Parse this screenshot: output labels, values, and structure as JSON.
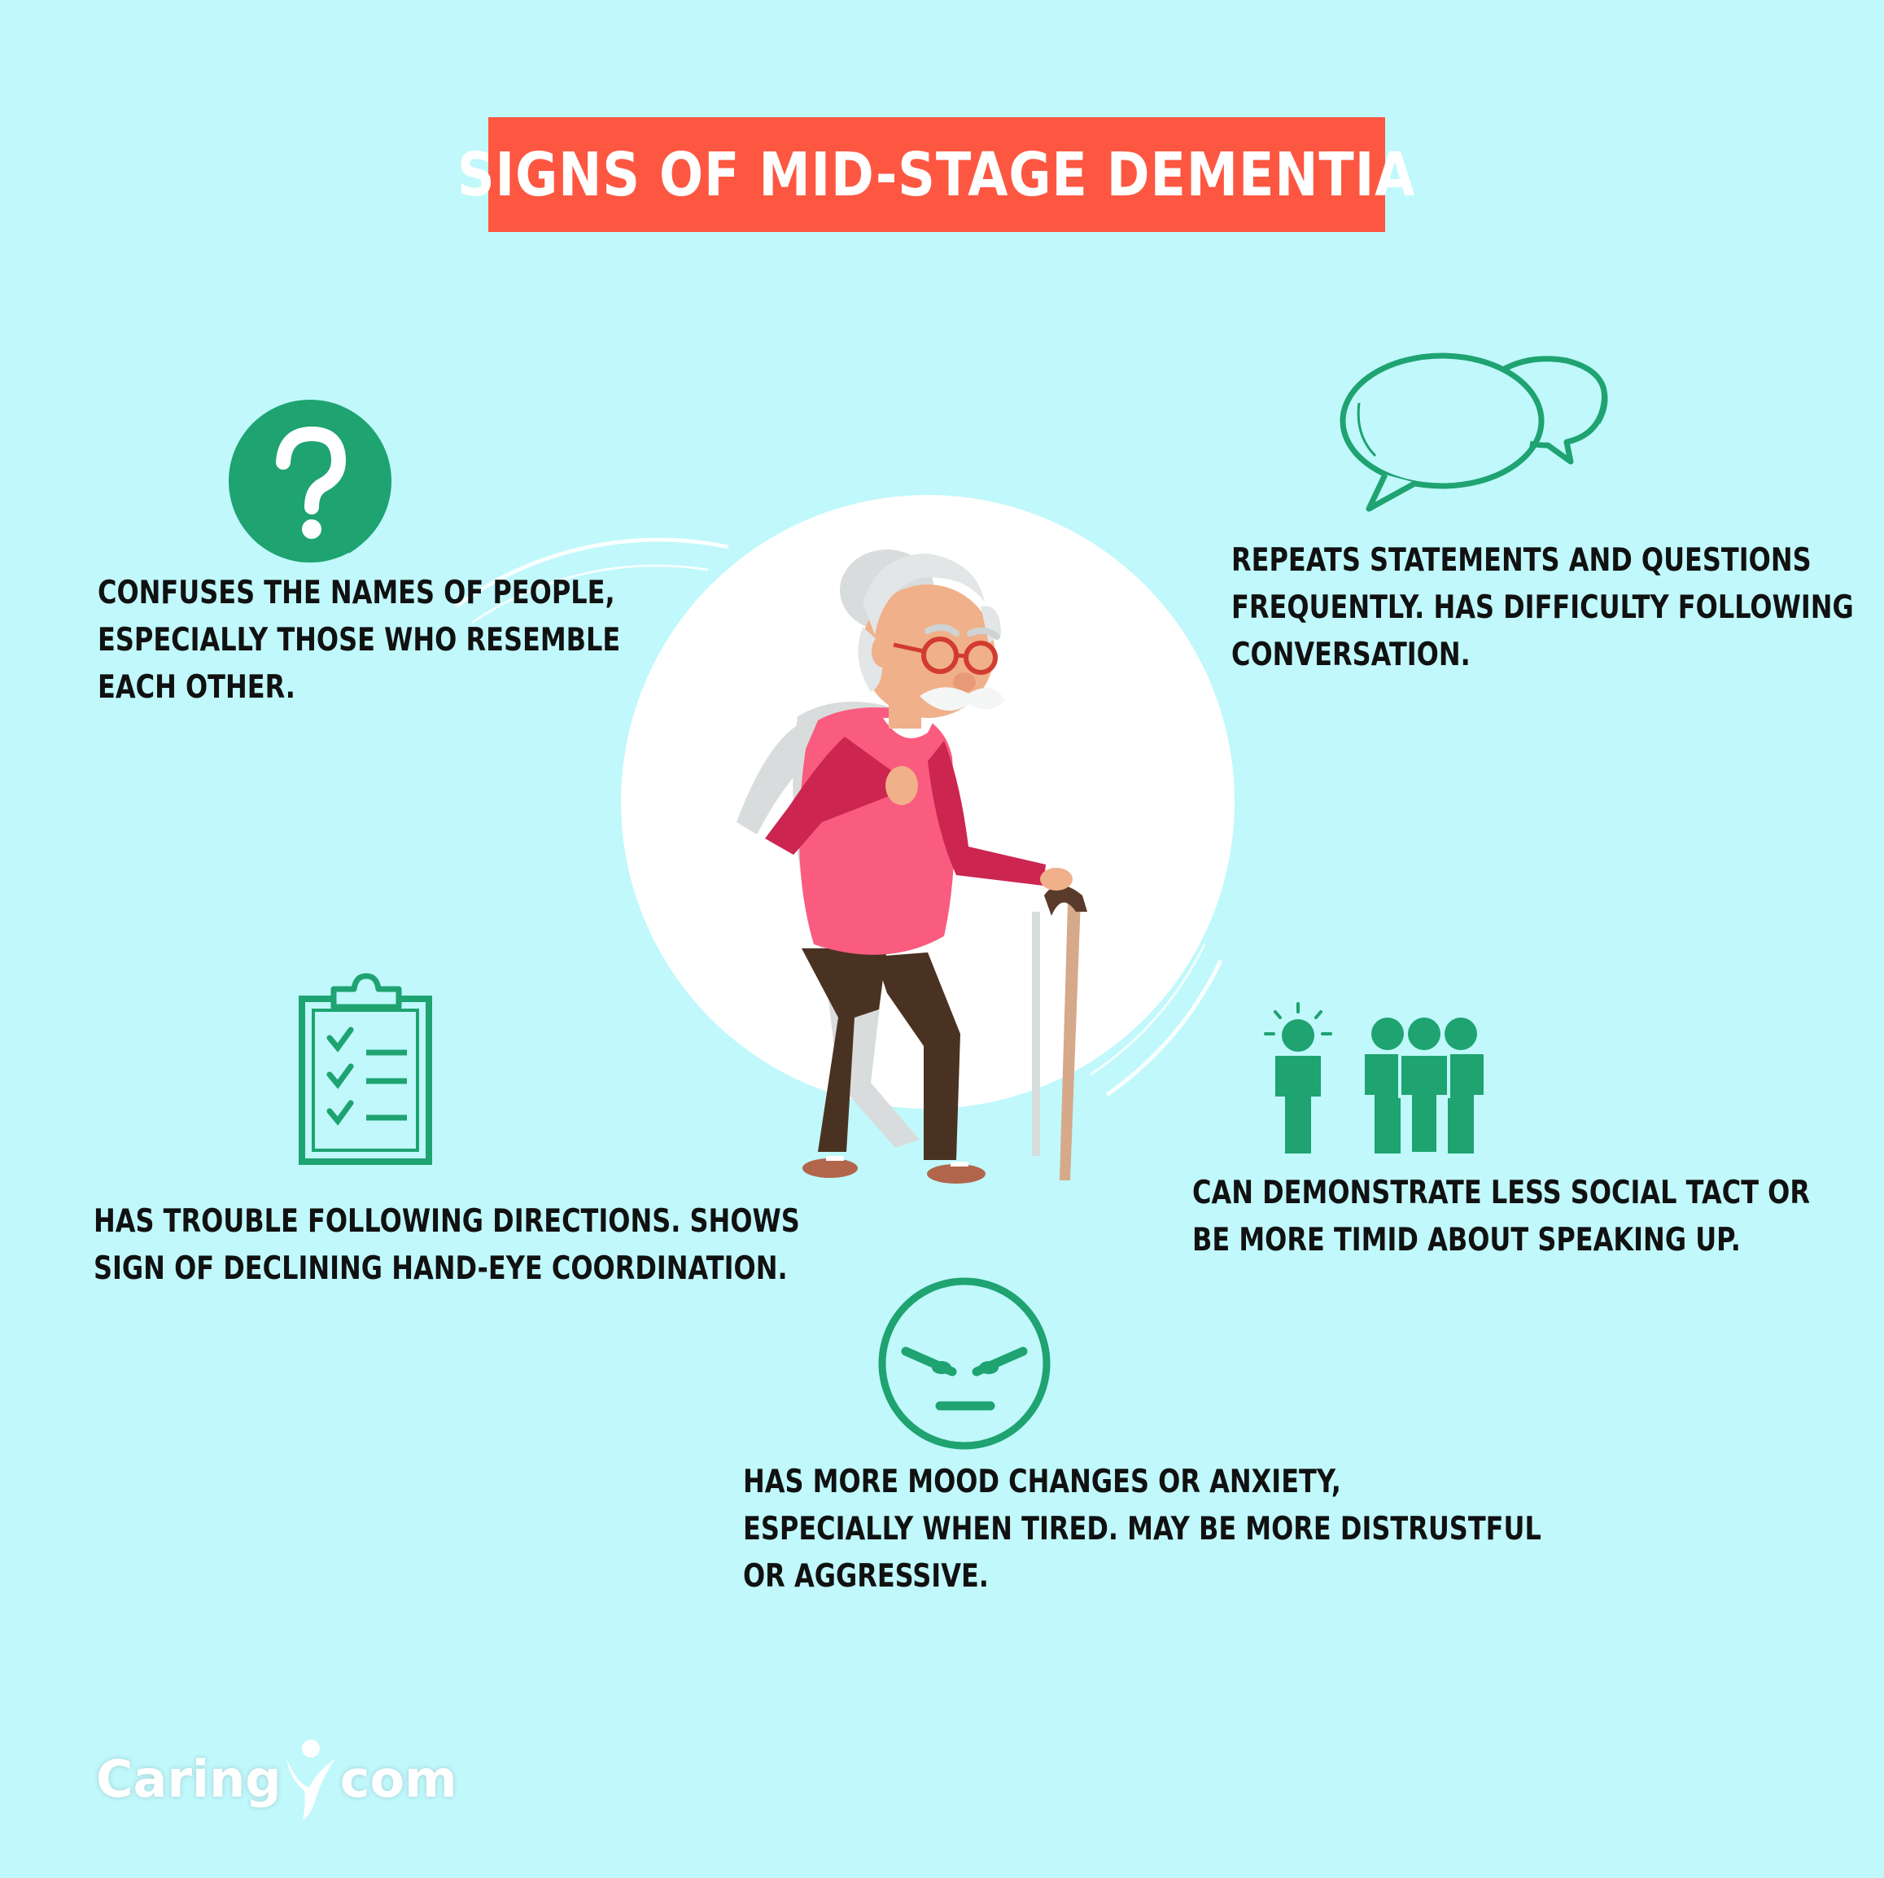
{
  "title": "SIGNS OF MID-STAGE DEMENTIA",
  "signs": {
    "names": {
      "icon": "question-mark-icon",
      "lines": [
        "CONFUSES THE NAMES OF PEOPLE,",
        "ESPECIALLY THOSE WHO RESEMBLE",
        "EACH OTHER."
      ]
    },
    "repeats": {
      "icon": "speech-bubbles-icon",
      "lines": [
        "REPEATS STATEMENTS AND QUESTIONS",
        "FREQUENTLY. HAS DIFFICULTY FOLLOWING",
        "CONVERSATION."
      ]
    },
    "directions": {
      "icon": "clipboard-checklist-icon",
      "lines": [
        "HAS TROUBLE FOLLOWING DIRECTIONS. SHOWS",
        "SIGN OF DECLINING HAND-EYE COORDINATION."
      ]
    },
    "social": {
      "icon": "person-and-group-icon",
      "lines": [
        "CAN DEMONSTRATE LESS SOCIAL TACT OR",
        "BE MORE TIMID ABOUT SPEAKING UP."
      ]
    },
    "mood": {
      "icon": "angry-face-icon",
      "lines": [
        "HAS MORE MOOD CHANGES OR ANXIETY,",
        "ESPECIALLY WHEN TIRED. MAY BE MORE DISTRUSTFUL",
        "OR AGGRESSIVE."
      ]
    }
  },
  "logo": {
    "left": "Caring",
    "right": "com"
  },
  "colors": {
    "background": "#c0f8fb",
    "banner": "#fd5742",
    "icon_green": "#1ea371",
    "text": "#111111"
  }
}
